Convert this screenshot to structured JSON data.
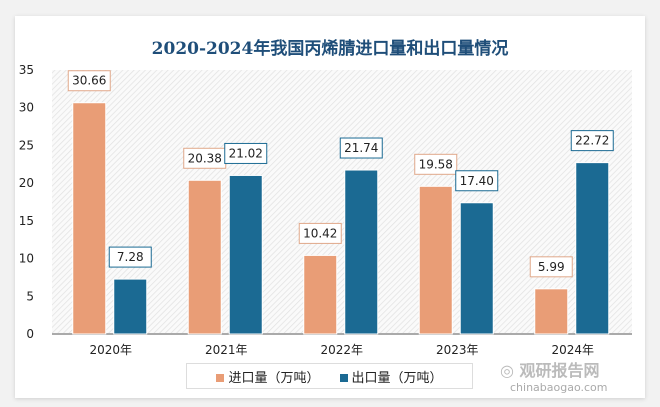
{
  "chart_data": {
    "type": "bar",
    "title": "2020-2024年我国丙烯腈进口量和出口量情况",
    "categories": [
      "2020年",
      "2021年",
      "2022年",
      "2023年",
      "2024年"
    ],
    "series": [
      {
        "name": "进口量（万吨）",
        "values": [
          30.66,
          20.38,
          10.42,
          19.58,
          5.99
        ],
        "color": "#e99d76"
      },
      {
        "name": "出口量（万吨）",
        "values": [
          7.28,
          21.02,
          21.74,
          17.4,
          22.72
        ],
        "color": "#1b6a93"
      }
    ],
    "ylim": [
      0,
      35
    ],
    "yticks": [
      0,
      5,
      10,
      15,
      20,
      25,
      30,
      35
    ],
    "legend": "bottom",
    "grid": false
  },
  "watermark": {
    "name": "观研报告网",
    "url": "chinabaogao.com"
  }
}
